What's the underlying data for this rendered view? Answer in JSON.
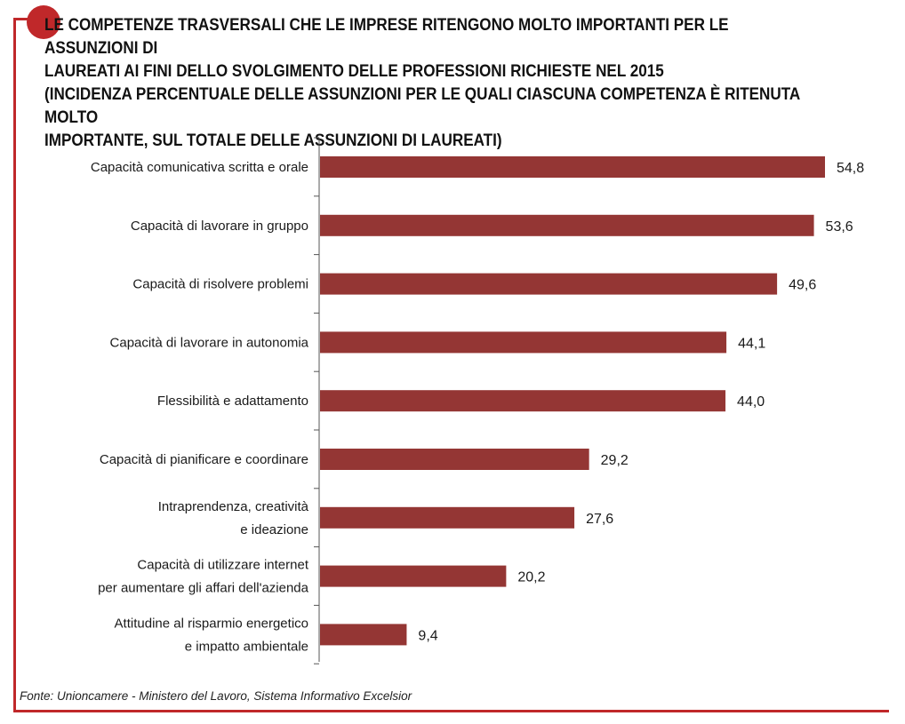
{
  "title": {
    "lines": [
      "LE COMPETENZE TRASVERSALI CHE LE IMPRESE RITENGONO MOLTO IMPORTANTI PER LE ASSUNZIONI DI",
      "LAUREATI AI FINI DELLO SVOLGIMENTO DELLE PROFESSIONI RICHIESTE NEL 2015",
      "(INCIDENZA PERCENTUALE DELLE ASSUNZIONI PER LE QUALI CIASCUNA COMPETENZA È RITENUTA MOLTO",
      "IMPORTANTE, SUL TOTALE DELLE ASSUNZIONI DI LAUREATI)"
    ]
  },
  "chart_data": {
    "type": "bar",
    "orientation": "horizontal",
    "categories": [
      [
        "Capacità comunicativa scritta e orale"
      ],
      [
        "Capacità di lavorare in gruppo"
      ],
      [
        "Capacità di risolvere problemi"
      ],
      [
        "Capacità di lavorare in autonomia"
      ],
      [
        "Flessibilità e adattamento"
      ],
      [
        "Capacità di pianificare e coordinare"
      ],
      [
        "Intraprendenza, creatività",
        "e ideazione"
      ],
      [
        "Capacità di utilizzare internet",
        "per aumentare gli affari dell'azienda"
      ],
      [
        "Attitudine al risparmio energetico",
        "e impatto ambientale"
      ]
    ],
    "values": [
      54.8,
      53.6,
      49.6,
      44.1,
      44.0,
      29.2,
      27.6,
      20.2,
      9.4
    ],
    "value_labels": [
      "54,8",
      "53,6",
      "49,6",
      "44,1",
      "44,0",
      "29,2",
      "27,6",
      "20,2",
      "9,4"
    ],
    "bar_color": "#943634",
    "grid": false,
    "legend": "none"
  },
  "source": "Fonte: Unioncamere - Ministero del Lavoro, Sistema Informativo Excelsior",
  "colors": {
    "frame": "#c0282a",
    "bar": "#943634"
  }
}
